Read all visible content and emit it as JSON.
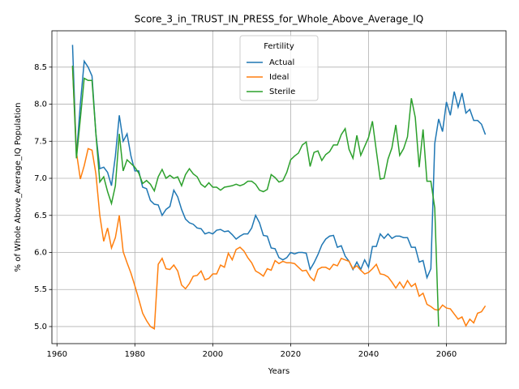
{
  "chart_data": {
    "type": "line",
    "title": "Score_3_in_TRUST_IN_PRESS_for_Whole_Above_Average_IQ",
    "x_label": "Years",
    "y_label": "% of Whole Above_Average_IQ Population",
    "legend_title": "Fertility",
    "legend": "upper center",
    "grid": true,
    "x": [
      1964,
      1965,
      1966,
      1967,
      1968,
      1969,
      1970,
      1971,
      1972,
      1973,
      1974,
      1975,
      1976,
      1977,
      1978,
      1979,
      1980,
      1981,
      1982,
      1983,
      1984,
      1985,
      1986,
      1987,
      1988,
      1989,
      1990,
      1991,
      1992,
      1993,
      1994,
      1995,
      1996,
      1997,
      1998,
      1999,
      2000,
      2001,
      2002,
      2003,
      2004,
      2005,
      2006,
      2007,
      2008,
      2009,
      2010,
      2011,
      2012,
      2013,
      2014,
      2015,
      2016,
      2017,
      2018,
      2019,
      2020,
      2021,
      2022,
      2023,
      2024,
      2025,
      2026,
      2027,
      2028,
      2029,
      2030,
      2031,
      2032,
      2033,
      2034,
      2035,
      2036,
      2037,
      2038,
      2039,
      2040,
      2041,
      2042,
      2043,
      2044,
      2045,
      2046,
      2047,
      2048,
      2049,
      2050,
      2051,
      2052,
      2053,
      2054,
      2055,
      2056,
      2057,
      2058,
      2059,
      2060,
      2061,
      2062,
      2063,
      2064,
      2065,
      2066,
      2067,
      2068,
      2069,
      2070
    ],
    "series": [
      {
        "name": "Actual",
        "color": "#1f77b4",
        "values": [
          8.8,
          7.3,
          8.0,
          8.58,
          8.5,
          8.38,
          7.6,
          7.13,
          7.15,
          7.08,
          6.9,
          7.3,
          7.85,
          7.5,
          7.6,
          7.3,
          7.1,
          7.1,
          6.88,
          6.86,
          6.7,
          6.65,
          6.64,
          6.5,
          6.58,
          6.62,
          6.84,
          6.75,
          6.58,
          6.45,
          6.4,
          6.38,
          6.33,
          6.32,
          6.25,
          6.27,
          6.25,
          6.3,
          6.31,
          6.28,
          6.29,
          6.24,
          6.18,
          6.22,
          6.25,
          6.25,
          6.33,
          6.5,
          6.4,
          6.23,
          6.22,
          6.06,
          6.05,
          5.93,
          5.9,
          5.93,
          6.0,
          5.98,
          6.0,
          6.0,
          5.99,
          5.77,
          5.86,
          5.97,
          6.1,
          6.18,
          6.22,
          6.23,
          6.07,
          6.09,
          5.95,
          5.88,
          5.77,
          5.87,
          5.77,
          5.9,
          5.8,
          6.08,
          6.08,
          6.25,
          6.19,
          6.25,
          6.19,
          6.22,
          6.22,
          6.2,
          6.2,
          6.07,
          6.07,
          5.87,
          5.89,
          5.66,
          5.78,
          7.47,
          7.8,
          7.63,
          8.03,
          7.85,
          8.17,
          7.96,
          8.15,
          7.88,
          7.93,
          7.78,
          7.78,
          7.73,
          7.59
        ]
      },
      {
        "name": "Ideal",
        "color": "#ff7f0e",
        "values": [
          8.5,
          7.35,
          6.99,
          7.17,
          7.4,
          7.38,
          7.06,
          6.5,
          6.15,
          6.33,
          6.06,
          6.2,
          6.5,
          6.01,
          5.86,
          5.72,
          5.55,
          5.37,
          5.18,
          5.08,
          5.0,
          4.97,
          5.84,
          5.92,
          5.78,
          5.77,
          5.83,
          5.75,
          5.56,
          5.51,
          5.58,
          5.68,
          5.69,
          5.75,
          5.63,
          5.65,
          5.71,
          5.71,
          5.83,
          5.8,
          5.99,
          5.9,
          6.04,
          6.07,
          6.02,
          5.93,
          5.86,
          5.75,
          5.72,
          5.68,
          5.78,
          5.76,
          5.89,
          5.85,
          5.88,
          5.86,
          5.86,
          5.85,
          5.8,
          5.75,
          5.76,
          5.67,
          5.62,
          5.77,
          5.8,
          5.8,
          5.77,
          5.84,
          5.82,
          5.92,
          5.9,
          5.88,
          5.78,
          5.82,
          5.76,
          5.71,
          5.73,
          5.78,
          5.84,
          5.71,
          5.7,
          5.67,
          5.6,
          5.52,
          5.6,
          5.52,
          5.62,
          5.54,
          5.58,
          5.41,
          5.45,
          5.3,
          5.27,
          5.23,
          5.22,
          5.29,
          5.25,
          5.24,
          5.17,
          5.1,
          5.13,
          5.01,
          5.1,
          5.05,
          5.18,
          5.2,
          5.28
        ]
      },
      {
        "name": "Sterile",
        "color": "#2ca02c",
        "values": [
          8.52,
          7.27,
          7.8,
          8.35,
          8.32,
          8.32,
          7.6,
          6.95,
          7.02,
          6.82,
          6.66,
          6.9,
          7.6,
          7.1,
          7.25,
          7.2,
          7.15,
          7.07,
          6.93,
          6.97,
          6.92,
          6.83,
          7.02,
          7.12,
          7.0,
          7.04,
          7.0,
          7.02,
          6.9,
          7.05,
          7.13,
          7.06,
          7.02,
          6.92,
          6.88,
          6.94,
          6.88,
          6.88,
          6.84,
          6.88,
          6.89,
          6.9,
          6.92,
          6.9,
          6.92,
          6.96,
          6.96,
          6.92,
          6.84,
          6.82,
          6.85,
          7.05,
          7.01,
          6.95,
          6.97,
          7.08,
          7.25,
          7.3,
          7.34,
          7.45,
          7.49,
          7.16,
          7.35,
          7.37,
          7.24,
          7.32,
          7.36,
          7.45,
          7.45,
          7.59,
          7.67,
          7.39,
          7.27,
          7.58,
          7.31,
          7.43,
          7.55,
          7.77,
          7.37,
          6.99,
          7.0,
          7.26,
          7.41,
          7.72,
          7.31,
          7.4,
          7.56,
          8.08,
          7.82,
          7.15,
          7.66,
          6.96,
          6.96,
          6.6,
          5.0,
          null,
          null,
          null,
          null,
          null,
          null,
          null,
          null,
          null,
          null,
          null,
          null
        ]
      }
    ],
    "xlim": [
      1958.7,
      2075.3
    ],
    "xticks": [
      1960,
      1980,
      2000,
      2020,
      2040,
      2060
    ],
    "ylim": [
      4.77,
      8.99
    ],
    "yticks": [
      {
        "value": 5.0,
        "label": "5.0"
      },
      {
        "value": 5.5,
        "label": "5.5"
      },
      {
        "value": 6.0,
        "label": "6.0"
      },
      {
        "value": 6.5,
        "label": "6.5"
      },
      {
        "value": 7.0,
        "label": "7.0"
      },
      {
        "value": 7.5,
        "label": "7.5"
      },
      {
        "value": 8.0,
        "label": "8.0"
      },
      {
        "value": 8.5,
        "label": "8.5"
      }
    ]
  }
}
